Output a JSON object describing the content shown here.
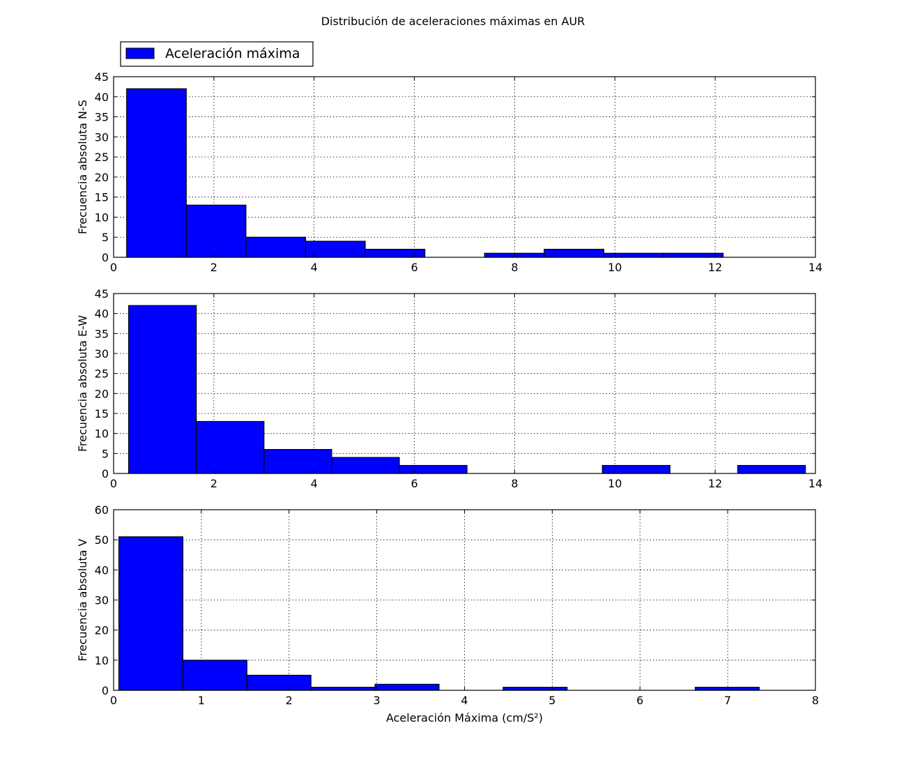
{
  "title": "Distribución de aceleraciones máximas en AUR",
  "legend": {
    "label": "Aceleración máxima",
    "color": "#0000ff",
    "placement": "top-left, above first subplot"
  },
  "colors": {
    "bar_fill": "#0000ff",
    "bar_edge": "#000000",
    "grid": "#000000",
    "axes": "#000000",
    "background": "#ffffff"
  },
  "chart_data": [
    {
      "type": "bar",
      "title": "",
      "xlabel": "",
      "ylabel": "Frecuencia absoluta N-S",
      "xlim": [
        0,
        14
      ],
      "ylim": [
        0,
        45
      ],
      "xticks": [
        0,
        2,
        4,
        6,
        8,
        10,
        12,
        14
      ],
      "yticks": [
        0,
        5,
        10,
        15,
        20,
        25,
        30,
        35,
        40,
        45
      ],
      "grid": true,
      "bin_edges": [
        0.26,
        1.45,
        2.64,
        3.83,
        5.02,
        6.21,
        7.4,
        8.59,
        9.78,
        10.97,
        12.16
      ],
      "values": [
        42,
        13,
        5,
        4,
        2,
        0,
        1,
        2,
        1,
        1
      ]
    },
    {
      "type": "bar",
      "title": "",
      "xlabel": "",
      "ylabel": "Frecuencia absoluta E-W",
      "xlim": [
        0,
        14
      ],
      "ylim": [
        0,
        45
      ],
      "xticks": [
        0,
        2,
        4,
        6,
        8,
        10,
        12,
        14
      ],
      "yticks": [
        0,
        5,
        10,
        15,
        20,
        25,
        30,
        35,
        40,
        45
      ],
      "grid": true,
      "bin_edges": [
        0.3,
        1.65,
        3.0,
        4.35,
        5.7,
        7.05,
        8.4,
        9.75,
        11.1,
        12.45,
        13.8
      ],
      "values": [
        42,
        13,
        6,
        4,
        2,
        0,
        0,
        2,
        0,
        2
      ]
    },
    {
      "type": "bar",
      "title": "",
      "xlabel": "Aceleración Máxima (cm/S²)",
      "ylabel": "Frecuencia absoluta V",
      "xlim": [
        0,
        8
      ],
      "ylim": [
        0,
        60
      ],
      "xticks": [
        0,
        1,
        2,
        3,
        4,
        5,
        6,
        7,
        8
      ],
      "yticks": [
        0,
        10,
        20,
        30,
        40,
        50,
        60
      ],
      "grid": true,
      "bin_edges": [
        0.06,
        0.79,
        1.52,
        2.25,
        2.98,
        3.71,
        4.44,
        5.17,
        5.9,
        6.63,
        7.36
      ],
      "values": [
        51,
        10,
        5,
        1,
        2,
        0,
        1,
        0,
        0,
        1
      ]
    }
  ]
}
